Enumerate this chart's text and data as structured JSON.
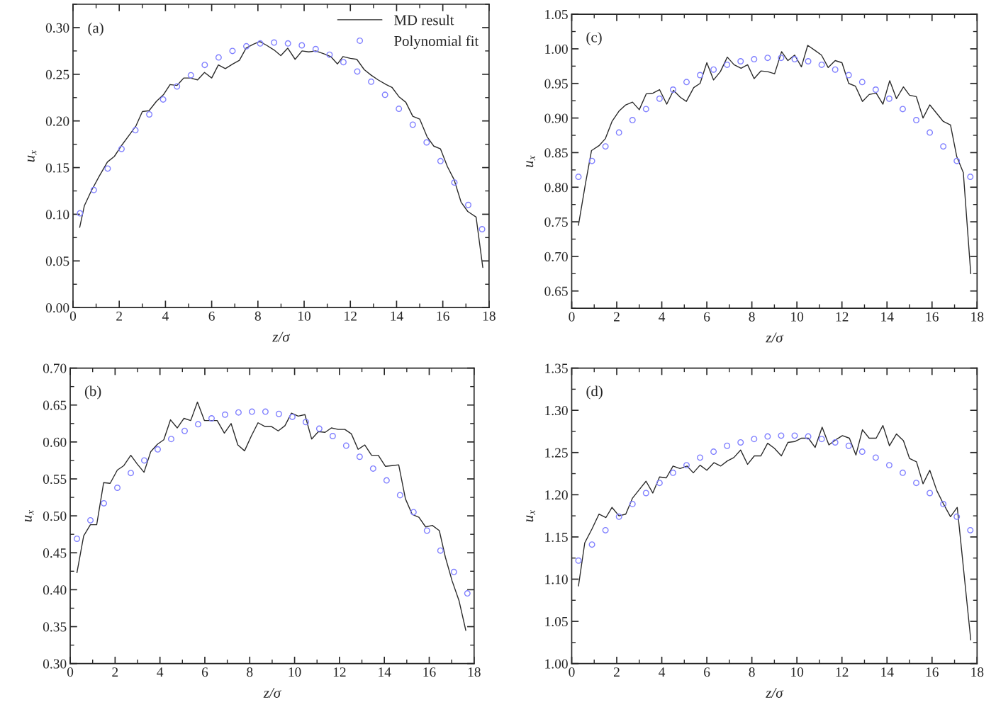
{
  "chart_data": [
    {
      "type": "line",
      "xlabel": "z/σ",
      "ylabel": "u$_{x}$",
      "annotations": [
        "(a)"
      ],
      "legend": "top right",
      "xlim": [
        0,
        18
      ],
      "ylim": [
        0,
        0.325
      ],
      "xticks": [
        0,
        2,
        4,
        6,
        8,
        10,
        12,
        14,
        16,
        18
      ],
      "yticks": [
        {
          "value": 0,
          "label": "0.00"
        },
        {
          "value": 0.05,
          "label": "0.05"
        },
        {
          "value": 0.1,
          "label": "0.10"
        },
        {
          "value": 0.15,
          "label": "0.15"
        },
        {
          "value": 0.2,
          "label": "0.20"
        },
        {
          "value": 0.25,
          "label": "0.25"
        },
        {
          "value": 0.3,
          "label": "0.30"
        }
      ],
      "series": [
        {
          "name": "MD result",
          "color": "#2b2b2b",
          "line_style": "solid",
          "x": [
            0.29,
            0.49,
            0.79,
            1.14,
            1.49,
            1.79,
            2.08,
            2.44,
            2.73,
            3.0,
            3.29,
            3.61,
            3.91,
            4.2,
            4.5,
            4.79,
            5.08,
            5.39,
            5.69,
            6.0,
            6.29,
            6.59,
            6.91,
            7.2,
            7.49,
            7.79,
            8.08,
            8.38,
            8.7,
            8.99,
            9.29,
            9.61,
            9.91,
            10.2,
            10.5,
            10.85,
            11.15,
            11.44,
            11.68,
            12.0,
            12.28,
            12.6,
            12.9,
            13.2,
            13.55,
            13.8,
            14.1,
            14.4,
            14.7,
            15.0,
            15.32,
            15.61,
            15.9,
            16.2,
            16.49,
            16.79,
            17.08,
            17.44,
            17.73
          ],
          "values": [
            0.086,
            0.109,
            0.125,
            0.141,
            0.156,
            0.162,
            0.173,
            0.185,
            0.195,
            0.21,
            0.211,
            0.221,
            0.228,
            0.239,
            0.238,
            0.246,
            0.246,
            0.244,
            0.252,
            0.246,
            0.26,
            0.256,
            0.261,
            0.265,
            0.278,
            0.282,
            0.285,
            0.281,
            0.276,
            0.27,
            0.278,
            0.266,
            0.275,
            0.274,
            0.275,
            0.272,
            0.269,
            0.261,
            0.269,
            0.267,
            0.266,
            0.255,
            0.249,
            0.244,
            0.239,
            0.236,
            0.226,
            0.22,
            0.205,
            0.202,
            0.183,
            0.173,
            0.17,
            0.151,
            0.137,
            0.113,
            0.103,
            0.097,
            0.043
          ]
        },
        {
          "name": "Polynomial fit",
          "type": "scatter",
          "color": "#8080ff",
          "marker": "circle",
          "x": [
            0.3,
            0.9,
            1.5,
            2.1,
            2.7,
            3.3,
            3.9,
            4.5,
            5.1,
            5.7,
            6.3,
            6.9,
            7.5,
            8.1,
            8.7,
            9.3,
            9.9,
            10.5,
            11.1,
            11.7,
            12.3,
            12.9,
            13.5,
            14.1,
            14.7,
            15.3,
            15.9,
            16.5,
            17.1,
            17.7
          ],
          "values": [
            0.101,
            0.126,
            0.149,
            0.17,
            0.19,
            0.207,
            0.223,
            0.237,
            0.249,
            0.26,
            0.268,
            0.275,
            0.28,
            0.283,
            0.284,
            0.283,
            0.281,
            0.277,
            0.271,
            0.263,
            0.253,
            0.242,
            0.228,
            0.213,
            0.196,
            0.177,
            0.157,
            0.134,
            0.11,
            0.084
          ]
        }
      ]
    },
    {
      "type": "line",
      "xlabel": "z/σ",
      "ylabel": "u$_{x}$",
      "annotations": [
        "(c)"
      ],
      "xlim": [
        0,
        18
      ],
      "ylim": [
        0.625,
        1.05
      ],
      "xticks": [
        0,
        2,
        4,
        6,
        8,
        10,
        12,
        14,
        16,
        18
      ],
      "yticks": [
        {
          "value": 0.65,
          "label": "0.65"
        },
        {
          "value": 0.7,
          "label": "0.70"
        },
        {
          "value": 0.75,
          "label": "0.75"
        },
        {
          "value": 0.8,
          "label": "0.80"
        },
        {
          "value": 0.85,
          "label": "0.85"
        },
        {
          "value": 0.9,
          "label": "0.90"
        },
        {
          "value": 0.95,
          "label": "0.95"
        },
        {
          "value": 1.0,
          "label": "1.00"
        },
        {
          "value": 1.05,
          "label": "1.05"
        }
      ],
      "series": [
        {
          "color": "#2b2b2b",
          "line_style": "solid",
          "x": [
            0.3,
            0.61,
            0.88,
            1.21,
            1.49,
            1.79,
            2.1,
            2.4,
            2.7,
            3.0,
            3.31,
            3.61,
            3.9,
            4.22,
            4.52,
            4.82,
            5.09,
            5.42,
            5.7,
            6.0,
            6.3,
            6.6,
            6.91,
            7.21,
            7.52,
            7.81,
            8.1,
            8.4,
            8.7,
            9.01,
            9.32,
            9.6,
            9.9,
            10.2,
            10.48,
            10.79,
            11.09,
            11.39,
            11.7,
            12.0,
            12.3,
            12.6,
            12.91,
            13.21,
            13.52,
            13.82,
            14.12,
            14.42,
            14.73,
            15.0,
            15.3,
            15.6,
            15.9,
            16.2,
            16.5,
            16.82,
            17.1,
            17.39,
            17.72
          ],
          "values": [
            0.745,
            0.805,
            0.853,
            0.86,
            0.87,
            0.895,
            0.91,
            0.919,
            0.923,
            0.912,
            0.935,
            0.936,
            0.941,
            0.92,
            0.94,
            0.93,
            0.924,
            0.944,
            0.95,
            0.98,
            0.955,
            0.967,
            0.988,
            0.977,
            0.972,
            0.977,
            0.957,
            0.968,
            0.967,
            0.964,
            0.996,
            0.983,
            0.991,
            0.974,
            1.005,
            0.998,
            0.991,
            0.973,
            0.983,
            0.98,
            0.95,
            0.946,
            0.924,
            0.934,
            0.936,
            0.92,
            0.954,
            0.928,
            0.945,
            0.933,
            0.931,
            0.9,
            0.919,
            0.907,
            0.895,
            0.89,
            0.844,
            0.821,
            0.675
          ]
        },
        {
          "type": "scatter",
          "color": "#8080ff",
          "marker": "circle",
          "x": [
            0.3,
            0.9,
            1.5,
            2.1,
            2.7,
            3.3,
            3.9,
            4.5,
            5.1,
            5.7,
            6.3,
            6.9,
            7.5,
            8.1,
            8.7,
            9.3,
            9.9,
            10.5,
            11.1,
            11.7,
            12.3,
            12.9,
            13.5,
            14.1,
            14.7,
            15.3,
            15.9,
            16.5,
            17.1,
            17.7
          ],
          "values": [
            0.815,
            0.838,
            0.859,
            0.879,
            0.897,
            0.913,
            0.928,
            0.941,
            0.952,
            0.962,
            0.97,
            0.977,
            0.982,
            0.985,
            0.987,
            0.987,
            0.985,
            0.982,
            0.977,
            0.97,
            0.962,
            0.952,
            0.941,
            0.928,
            0.913,
            0.897,
            0.879,
            0.859,
            0.838,
            0.815
          ]
        }
      ]
    },
    {
      "type": "line",
      "xlabel": "z/σ",
      "ylabel": "u$_{x}$",
      "annotations": [
        "(b)"
      ],
      "xlim": [
        0,
        18
      ],
      "ylim": [
        0.3,
        0.7
      ],
      "xticks": [
        0,
        2,
        4,
        6,
        8,
        10,
        12,
        14,
        16,
        18
      ],
      "yticks": [
        {
          "value": 0.3,
          "label": "0.30"
        },
        {
          "value": 0.35,
          "label": "0.35"
        },
        {
          "value": 0.4,
          "label": "0.40"
        },
        {
          "value": 0.45,
          "label": "0.45"
        },
        {
          "value": 0.5,
          "label": "0.50"
        },
        {
          "value": 0.55,
          "label": "0.55"
        },
        {
          "value": 0.6,
          "label": "0.60"
        },
        {
          "value": 0.65,
          "label": "0.65"
        },
        {
          "value": 0.7,
          "label": "0.70"
        }
      ],
      "series": [
        {
          "color": "#2b2b2b",
          "line_style": "solid",
          "x": [
            0.3,
            0.6,
            0.9,
            1.18,
            1.49,
            1.78,
            2.1,
            2.39,
            2.7,
            2.99,
            3.29,
            3.59,
            3.89,
            4.17,
            4.47,
            4.77,
            5.07,
            5.37,
            5.67,
            5.98,
            6.28,
            6.55,
            6.87,
            7.17,
            7.47,
            7.77,
            8.07,
            8.37,
            8.67,
            8.96,
            9.27,
            9.57,
            9.86,
            10.16,
            10.46,
            10.76,
            11.06,
            11.36,
            11.64,
            11.94,
            12.24,
            12.53,
            12.83,
            13.13,
            13.43,
            13.73,
            14.05,
            14.34,
            14.64,
            14.94,
            15.24,
            15.54,
            15.84,
            16.14,
            16.45,
            16.72,
            17.02,
            17.33,
            17.63
          ],
          "values": [
            0.423,
            0.473,
            0.488,
            0.488,
            0.545,
            0.544,
            0.562,
            0.568,
            0.582,
            0.57,
            0.559,
            0.587,
            0.597,
            0.603,
            0.63,
            0.619,
            0.632,
            0.629,
            0.654,
            0.629,
            0.629,
            0.629,
            0.612,
            0.625,
            0.596,
            0.588,
            0.608,
            0.626,
            0.621,
            0.621,
            0.615,
            0.622,
            0.639,
            0.635,
            0.637,
            0.604,
            0.614,
            0.613,
            0.619,
            0.617,
            0.617,
            0.611,
            0.59,
            0.596,
            0.582,
            0.582,
            0.567,
            0.568,
            0.569,
            0.523,
            0.502,
            0.498,
            0.485,
            0.487,
            0.48,
            0.444,
            0.412,
            0.385,
            0.345
          ]
        },
        {
          "type": "scatter",
          "color": "#8080ff",
          "marker": "circle",
          "x": [
            0.3,
            0.9,
            1.5,
            2.1,
            2.7,
            3.3,
            3.9,
            4.5,
            5.1,
            5.7,
            6.3,
            6.9,
            7.5,
            8.1,
            8.7,
            9.3,
            9.9,
            10.5,
            11.1,
            11.7,
            12.3,
            12.9,
            13.5,
            14.1,
            14.7,
            15.3,
            15.9,
            16.5,
            17.1,
            17.7
          ],
          "values": [
            0.469,
            0.494,
            0.517,
            0.538,
            0.558,
            0.575,
            0.59,
            0.604,
            0.615,
            0.624,
            0.632,
            0.637,
            0.64,
            0.641,
            0.641,
            0.638,
            0.634,
            0.627,
            0.618,
            0.608,
            0.595,
            0.58,
            0.564,
            0.548,
            0.528,
            0.505,
            0.48,
            0.453,
            0.424,
            0.395
          ]
        }
      ]
    },
    {
      "type": "line",
      "xlabel": "z/σ",
      "ylabel": "u$_{x}$",
      "annotations": [
        "(d)"
      ],
      "xlim": [
        0,
        18
      ],
      "ylim": [
        1.0,
        1.35
      ],
      "xticks": [
        0,
        2,
        4,
        6,
        8,
        10,
        12,
        14,
        16,
        18
      ],
      "yticks": [
        {
          "value": 1.0,
          "label": "1.00"
        },
        {
          "value": 1.05,
          "label": "1.05"
        },
        {
          "value": 1.1,
          "label": "1.10"
        },
        {
          "value": 1.15,
          "label": "1.15"
        },
        {
          "value": 1.2,
          "label": "1.20"
        },
        {
          "value": 1.25,
          "label": "1.25"
        },
        {
          "value": 1.3,
          "label": "1.30"
        },
        {
          "value": 1.35,
          "label": "1.35"
        }
      ],
      "series": [
        {
          "color": "#2b2b2b",
          "line_style": "solid",
          "x": [
            0.3,
            0.58,
            0.91,
            1.21,
            1.52,
            1.79,
            2.1,
            2.4,
            2.7,
            3.0,
            3.3,
            3.6,
            3.9,
            4.2,
            4.5,
            4.81,
            5.12,
            5.4,
            5.7,
            6.0,
            6.32,
            6.62,
            6.91,
            7.2,
            7.5,
            7.81,
            8.11,
            8.4,
            8.7,
            9.0,
            9.31,
            9.6,
            9.9,
            10.21,
            10.51,
            10.81,
            11.12,
            11.42,
            11.72,
            12.02,
            12.33,
            12.62,
            12.91,
            13.21,
            13.52,
            13.82,
            14.11,
            14.42,
            14.73,
            15.0,
            15.31,
            15.6,
            15.9,
            16.21,
            16.51,
            16.82,
            17.12,
            17.72
          ],
          "values": [
            1.092,
            1.143,
            1.16,
            1.177,
            1.173,
            1.185,
            1.175,
            1.177,
            1.196,
            1.206,
            1.216,
            1.202,
            1.221,
            1.22,
            1.234,
            1.231,
            1.234,
            1.226,
            1.235,
            1.229,
            1.238,
            1.234,
            1.24,
            1.244,
            1.253,
            1.236,
            1.246,
            1.246,
            1.261,
            1.255,
            1.246,
            1.262,
            1.263,
            1.267,
            1.267,
            1.256,
            1.28,
            1.259,
            1.265,
            1.27,
            1.267,
            1.247,
            1.277,
            1.267,
            1.267,
            1.282,
            1.258,
            1.272,
            1.264,
            1.243,
            1.239,
            1.213,
            1.229,
            1.205,
            1.189,
            1.174,
            1.185,
            1.028
          ]
        },
        {
          "type": "scatter",
          "color": "#8080ff",
          "marker": "circle",
          "x": [
            0.3,
            0.9,
            1.5,
            2.1,
            2.7,
            3.3,
            3.9,
            4.5,
            5.1,
            5.7,
            6.3,
            6.9,
            7.5,
            8.1,
            8.7,
            9.3,
            9.9,
            10.5,
            11.1,
            11.7,
            12.3,
            12.9,
            13.5,
            14.1,
            14.7,
            15.3,
            15.9,
            16.5,
            17.1,
            17.7
          ],
          "values": [
            1.122,
            1.141,
            1.158,
            1.174,
            1.189,
            1.202,
            1.214,
            1.226,
            1.235,
            1.244,
            1.251,
            1.258,
            1.262,
            1.266,
            1.269,
            1.27,
            1.27,
            1.269,
            1.266,
            1.262,
            1.258,
            1.251,
            1.244,
            1.235,
            1.226,
            1.214,
            1.202,
            1.189,
            1.174,
            1.158
          ]
        }
      ]
    }
  ]
}
